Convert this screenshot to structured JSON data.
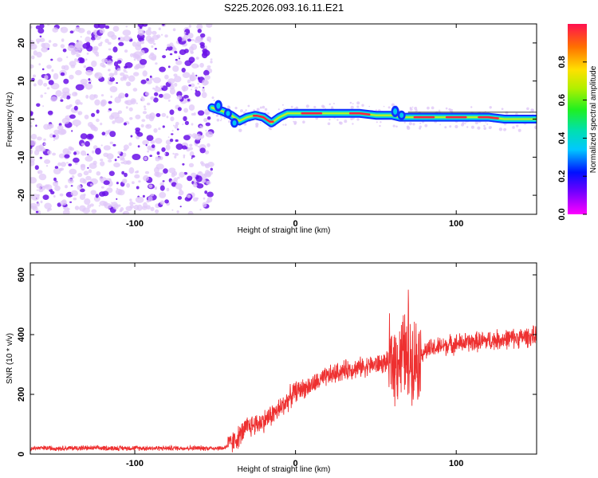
{
  "title": "S225.2026.093.16.11.E21",
  "chart_data": [
    {
      "type": "heatmap",
      "xlabel": "Height of straight line (km)",
      "ylabel": "Frequency (Hz)",
      "xlim": [
        -165,
        150
      ],
      "ylim": [
        -25,
        25
      ],
      "xticks": [
        -100,
        0,
        100
      ],
      "yticks": [
        -20,
        -10,
        0,
        10,
        20
      ],
      "xtick_labels": [
        "-100",
        "0",
        "100"
      ],
      "ytick_labels": [
        "-20",
        "-10",
        "0",
        "10",
        "20"
      ],
      "noise_region_x": [
        -165,
        -52
      ],
      "signal_start_x": -52,
      "signal_trace": {
        "x": [
          -52,
          -45,
          -40,
          -35,
          -30,
          -25,
          -20,
          -15,
          -10,
          -5,
          0,
          5,
          10,
          20,
          30,
          40,
          50,
          60,
          65,
          70,
          80,
          90,
          100,
          110,
          120,
          130,
          140,
          150
        ],
        "freq": [
          3.0,
          2.0,
          1.0,
          -0.5,
          0.5,
          1.0,
          0.5,
          -1.0,
          0.5,
          1.5,
          1.5,
          1.5,
          1.5,
          1.5,
          1.5,
          1.5,
          1.0,
          1.0,
          0.5,
          0.5,
          0.5,
          0.5,
          0.5,
          0.5,
          0.5,
          0.0,
          0.0,
          0.0
        ]
      },
      "colorbar": {
        "label": "Normalized spectral amplitude",
        "min": 0.0,
        "max": 1.0,
        "ticks": [
          0.0,
          0.2,
          0.4,
          0.6,
          0.8
        ],
        "tick_labels": [
          "0.0",
          "0.2",
          "0.4",
          "0.6",
          "0.8"
        ]
      }
    },
    {
      "type": "line",
      "xlabel": "Height of straight line (km)",
      "ylabel": "SNR (10 * v/v)",
      "xlim": [
        -165,
        150
      ],
      "ylim": [
        0,
        640
      ],
      "xticks": [
        -100,
        0,
        100
      ],
      "yticks": [
        0,
        200,
        400,
        600
      ],
      "xtick_labels": [
        "-100",
        "0",
        "100"
      ],
      "ytick_labels": [
        "0",
        "200",
        "400",
        "600"
      ],
      "series": [
        {
          "name": "SNR",
          "color": "#ee3030",
          "x": [
            -165,
            -100,
            -60,
            -45,
            -40,
            -35,
            -30,
            -20,
            -10,
            0,
            10,
            20,
            30,
            40,
            50,
            55,
            60,
            65,
            68,
            70,
            72,
            75,
            80,
            90,
            100,
            110,
            120,
            130,
            140,
            150
          ],
          "y": [
            20,
            20,
            20,
            20,
            35,
            60,
            90,
            110,
            150,
            210,
            230,
            260,
            280,
            290,
            300,
            305,
            310,
            320,
            340,
            300,
            330,
            320,
            345,
            360,
            370,
            375,
            380,
            385,
            390,
            395
          ]
        }
      ]
    }
  ],
  "colors": {
    "axis": "#000000",
    "noise_light": "#e0c8f8",
    "noise_dark": "#6a10e8",
    "line": "#ee3030"
  }
}
